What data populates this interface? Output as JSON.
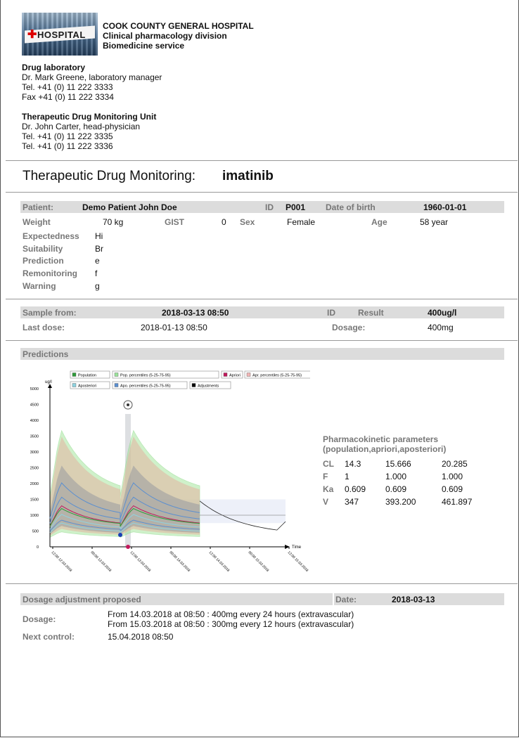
{
  "header": {
    "logo_text": "HOSPITAL",
    "hospital_name": "COOK COUNTY GENERAL HOSPITAL",
    "division": "Clinical pharmacology division",
    "service": "Biomedicine service"
  },
  "lab": {
    "heading": "Drug laboratory",
    "manager": "Dr. Mark Greene, laboratory manager",
    "tel": "Tel. +41 (0) 11 222 3333",
    "fax": "Fax +41 (0) 11 222 3334"
  },
  "tdm_unit": {
    "heading": "Therapeutic Drug Monitoring Unit",
    "physician": "Dr. John Carter, head-physician",
    "tel1": "Tel. +41 (0) 11 222 3335",
    "tel2": "Tel. +41 (0) 11 222 3336"
  },
  "report": {
    "title": "Therapeutic Drug Monitoring:",
    "drug": "imatinib"
  },
  "patient": {
    "patient_label": "Patient:",
    "patient_name": "Demo Patient John Doe",
    "id_label": "ID",
    "id_value": "P001",
    "dob_label": "Date of birth",
    "dob_value": "1960-01-01",
    "weight_label": "Weight",
    "weight_value": "70 kg",
    "gist_label": "GIST",
    "gist_value": "0",
    "sex_label": "Sex",
    "sex_value": "Female",
    "age_label": "Age",
    "age_value": "58 year",
    "expectedness_label": "Expectedness",
    "expectedness_value": "Hi",
    "suitability_label": "Suitability",
    "suitability_value": "Br",
    "prediction_label": "Prediction",
    "prediction_value": "e",
    "remonitoring_label": "Remonitoring",
    "remonitoring_value": "f",
    "warning_label": "Warning",
    "warning_value": "g"
  },
  "sample": {
    "from_label": "Sample from:",
    "from_value": "2018-03-13 08:50",
    "id_label": "ID",
    "result_label": "Result",
    "result_value": "400ug/l",
    "lastdose_label": "Last dose:",
    "lastdose_value": "2018-01-13 08:50",
    "dosage_label": "Dosage:",
    "dosage_value": "400mg"
  },
  "predictions": {
    "heading": "Predictions"
  },
  "chart_data": {
    "type": "line",
    "ylabel": "ug/l",
    "xlabel": "Time",
    "ylim": [
      0,
      5000
    ],
    "y_ticks": [
      0,
      500,
      1000,
      1500,
      2000,
      2500,
      3000,
      3500,
      4000,
      4500,
      5000
    ],
    "x_tick_labels": [
      "12:00 12.03.2018",
      "00:00 13.03.2018",
      "12:00 13.03.2018",
      "00:00 14.03.2018",
      "12:00 14.03.2018",
      "00:00 15.03.2018",
      "12:00 15.03.2018"
    ],
    "legend": [
      {
        "name": "Population",
        "color": "#2e9c3a"
      },
      {
        "name": "Pop. percentiles (5-25-75-95)",
        "color": "#9be39b"
      },
      {
        "name": "Apriori",
        "color": "#c2185b"
      },
      {
        "name": "Apr. percentiles (5-25-75-95)",
        "color": "#f2b6b6"
      },
      {
        "name": "Aposteriori",
        "color": "#8fd3e0"
      },
      {
        "name": "Apo. percentiles (5-25-75-95)",
        "color": "#5b8fd0"
      },
      {
        "name": "Adjustments",
        "color": "#000000"
      }
    ]
  },
  "pk": {
    "heading1": "Pharmacokinetic parameters",
    "heading2": "(population,apriori,aposteriori)",
    "rows": [
      {
        "name": "CL",
        "pop": "14.3",
        "apr": "15.666",
        "apo": "20.285"
      },
      {
        "name": "F",
        "pop": "1",
        "apr": "1.000",
        "apo": "1.000"
      },
      {
        "name": "Ka",
        "pop": "0.609",
        "apr": "0.609",
        "apo": "0.609"
      },
      {
        "name": "V",
        "pop": "347",
        "apr": "393.200",
        "apo": "461.897"
      }
    ]
  },
  "adjustment": {
    "heading": "Dosage adjustment proposed",
    "date_label": "Date:",
    "date_value": "2018-03-13",
    "dosage_label": "Dosage:",
    "dosage_line1": "From 14.03.2018 at 08:50 : 400mg every 24 hours (extravascular)",
    "dosage_line2": "From 15.03.2018 at 08:50 : 300mg every 12 hours (extravascular)",
    "next_label": "Next control:",
    "next_value": "15.04.2018 08:50"
  }
}
